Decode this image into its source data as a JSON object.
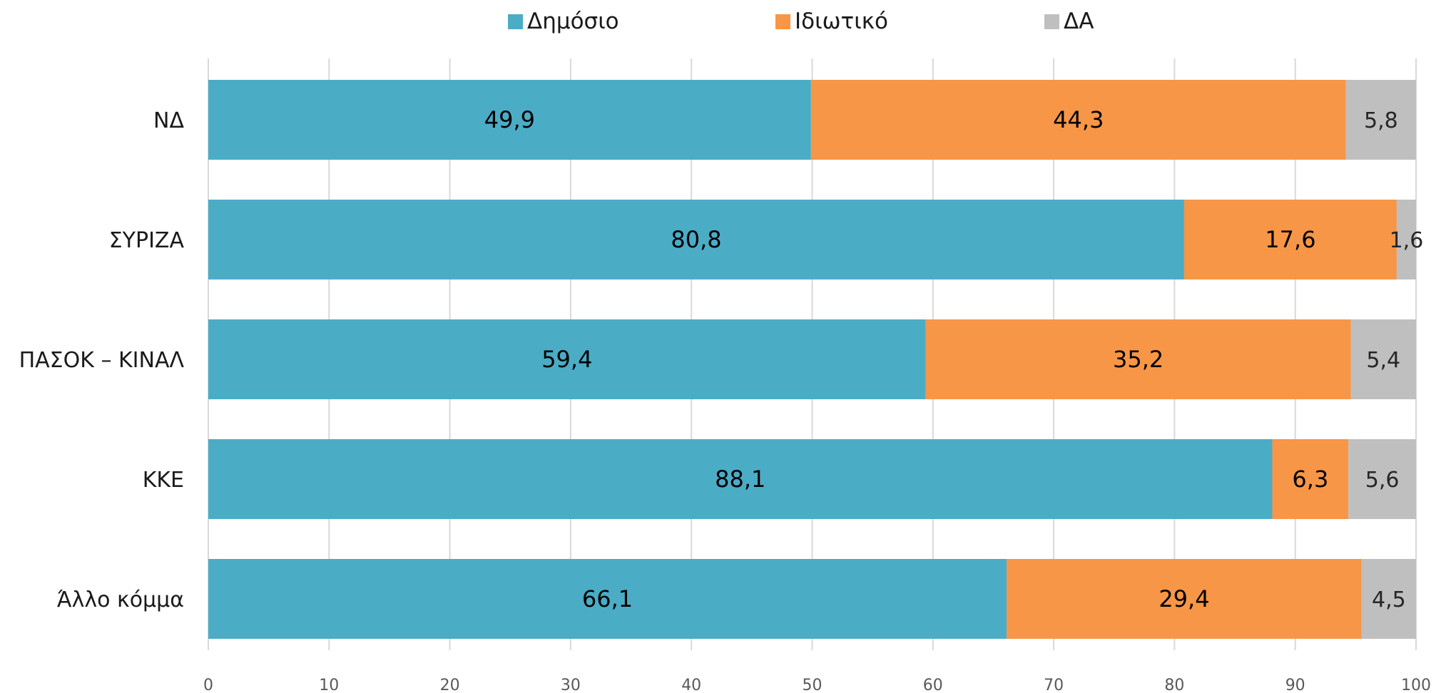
{
  "chart_data": {
    "type": "bar",
    "orientation": "horizontal",
    "stacked": true,
    "categories": [
      "ΝΔ",
      "ΣΥΡΙΖΑ",
      "ΠΑΣΟΚ – ΚΙΝΑΛ",
      "ΚΚΕ",
      "Άλλο κόμμα"
    ],
    "series": [
      {
        "name": "Δημόσιο",
        "color": "#4BACC6",
        "values": [
          49.9,
          80.8,
          59.4,
          88.1,
          66.1
        ],
        "labels": [
          "49,9",
          "80,8",
          "59,4",
          "88,1",
          "66,1"
        ]
      },
      {
        "name": "Ιδιωτικό",
        "color": "#F79646",
        "values": [
          44.3,
          17.6,
          35.2,
          6.3,
          29.4
        ],
        "labels": [
          "44,3",
          "17,6",
          "35,2",
          "6,3",
          "29,4"
        ]
      },
      {
        "name": "ΔΑ",
        "color": "#BFBFBF",
        "values": [
          5.8,
          1.6,
          5.4,
          5.6,
          4.5
        ],
        "labels": [
          "5,8",
          "1,6",
          "5,4",
          "5,6",
          "4,5"
        ]
      }
    ],
    "xlim": [
      0,
      100
    ],
    "xticks": [
      "0",
      "10",
      "20",
      "30",
      "40",
      "50",
      "60",
      "70",
      "80",
      "90",
      "100"
    ],
    "grid": true,
    "legend_position": "top"
  }
}
